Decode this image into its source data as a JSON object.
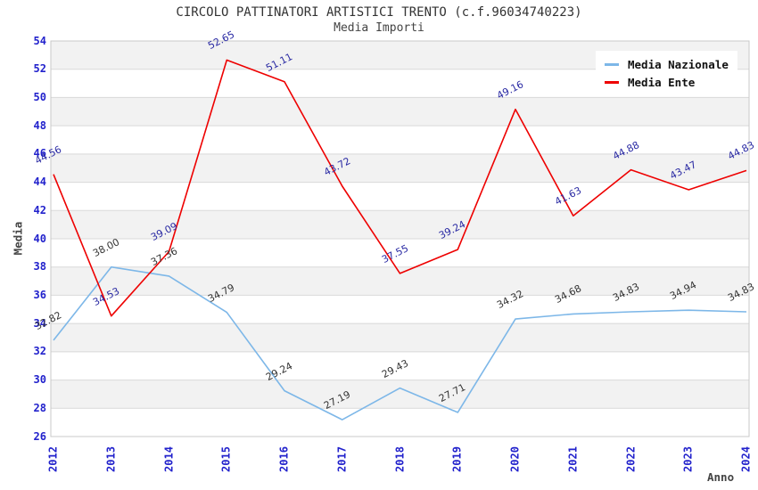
{
  "header": {
    "title": "CIRCOLO PATTINATORI ARTISTICI TRENTO (c.f.96034740223)",
    "subtitle": "Media Importi"
  },
  "axes": {
    "y_title": "Media",
    "x_title": "Anno"
  },
  "legend": {
    "items": [
      {
        "label": "Media Nazionale"
      },
      {
        "label": "Media Ente"
      }
    ]
  },
  "colors": {
    "band": "#f2f2f2",
    "band_alt": "#ffffff",
    "grid": "#d9d9d9",
    "plot_border": "#c9c9c9",
    "axis_tick_text": "#2222cc",
    "nazionale_line": "#7db7e8",
    "nazionale_label": "#333333",
    "ente_line": "#ee0000",
    "ente_label": "#2929a3"
  },
  "chart_data": {
    "type": "line",
    "title": "CIRCOLO PATTINATORI ARTISTICI TRENTO (c.f.96034740223)",
    "subtitle": "Media Importi",
    "xlabel": "Anno",
    "ylabel": "Media",
    "ylim": [
      26,
      54
    ],
    "ytick_step": 2,
    "grid": "horizontal alternating bands every 2 units",
    "legend_position": "top-right inside plot",
    "categories": [
      "2012",
      "2013",
      "2014",
      "2015",
      "2016",
      "2017",
      "2018",
      "2019",
      "2020",
      "2021",
      "2022",
      "2023",
      "2024"
    ],
    "series": [
      {
        "name": "Media Nazionale",
        "color": "#7db7e8",
        "label_color": "#333333",
        "values": [
          "32.82",
          "38.00",
          "37.36",
          "34.79",
          "29.24",
          "27.19",
          "29.43",
          "27.71",
          "34.32",
          "34.68",
          "34.83",
          "34.94",
          "34.83"
        ]
      },
      {
        "name": "Media Ente",
        "color": "#ee0000",
        "label_color": "#2929a3",
        "values": [
          "44.56",
          "34.53",
          "39.09",
          "52.65",
          "51.11",
          "43.72",
          "37.55",
          "39.24",
          "49.16",
          "41.63",
          "44.88",
          "43.47",
          "44.83"
        ]
      }
    ]
  }
}
